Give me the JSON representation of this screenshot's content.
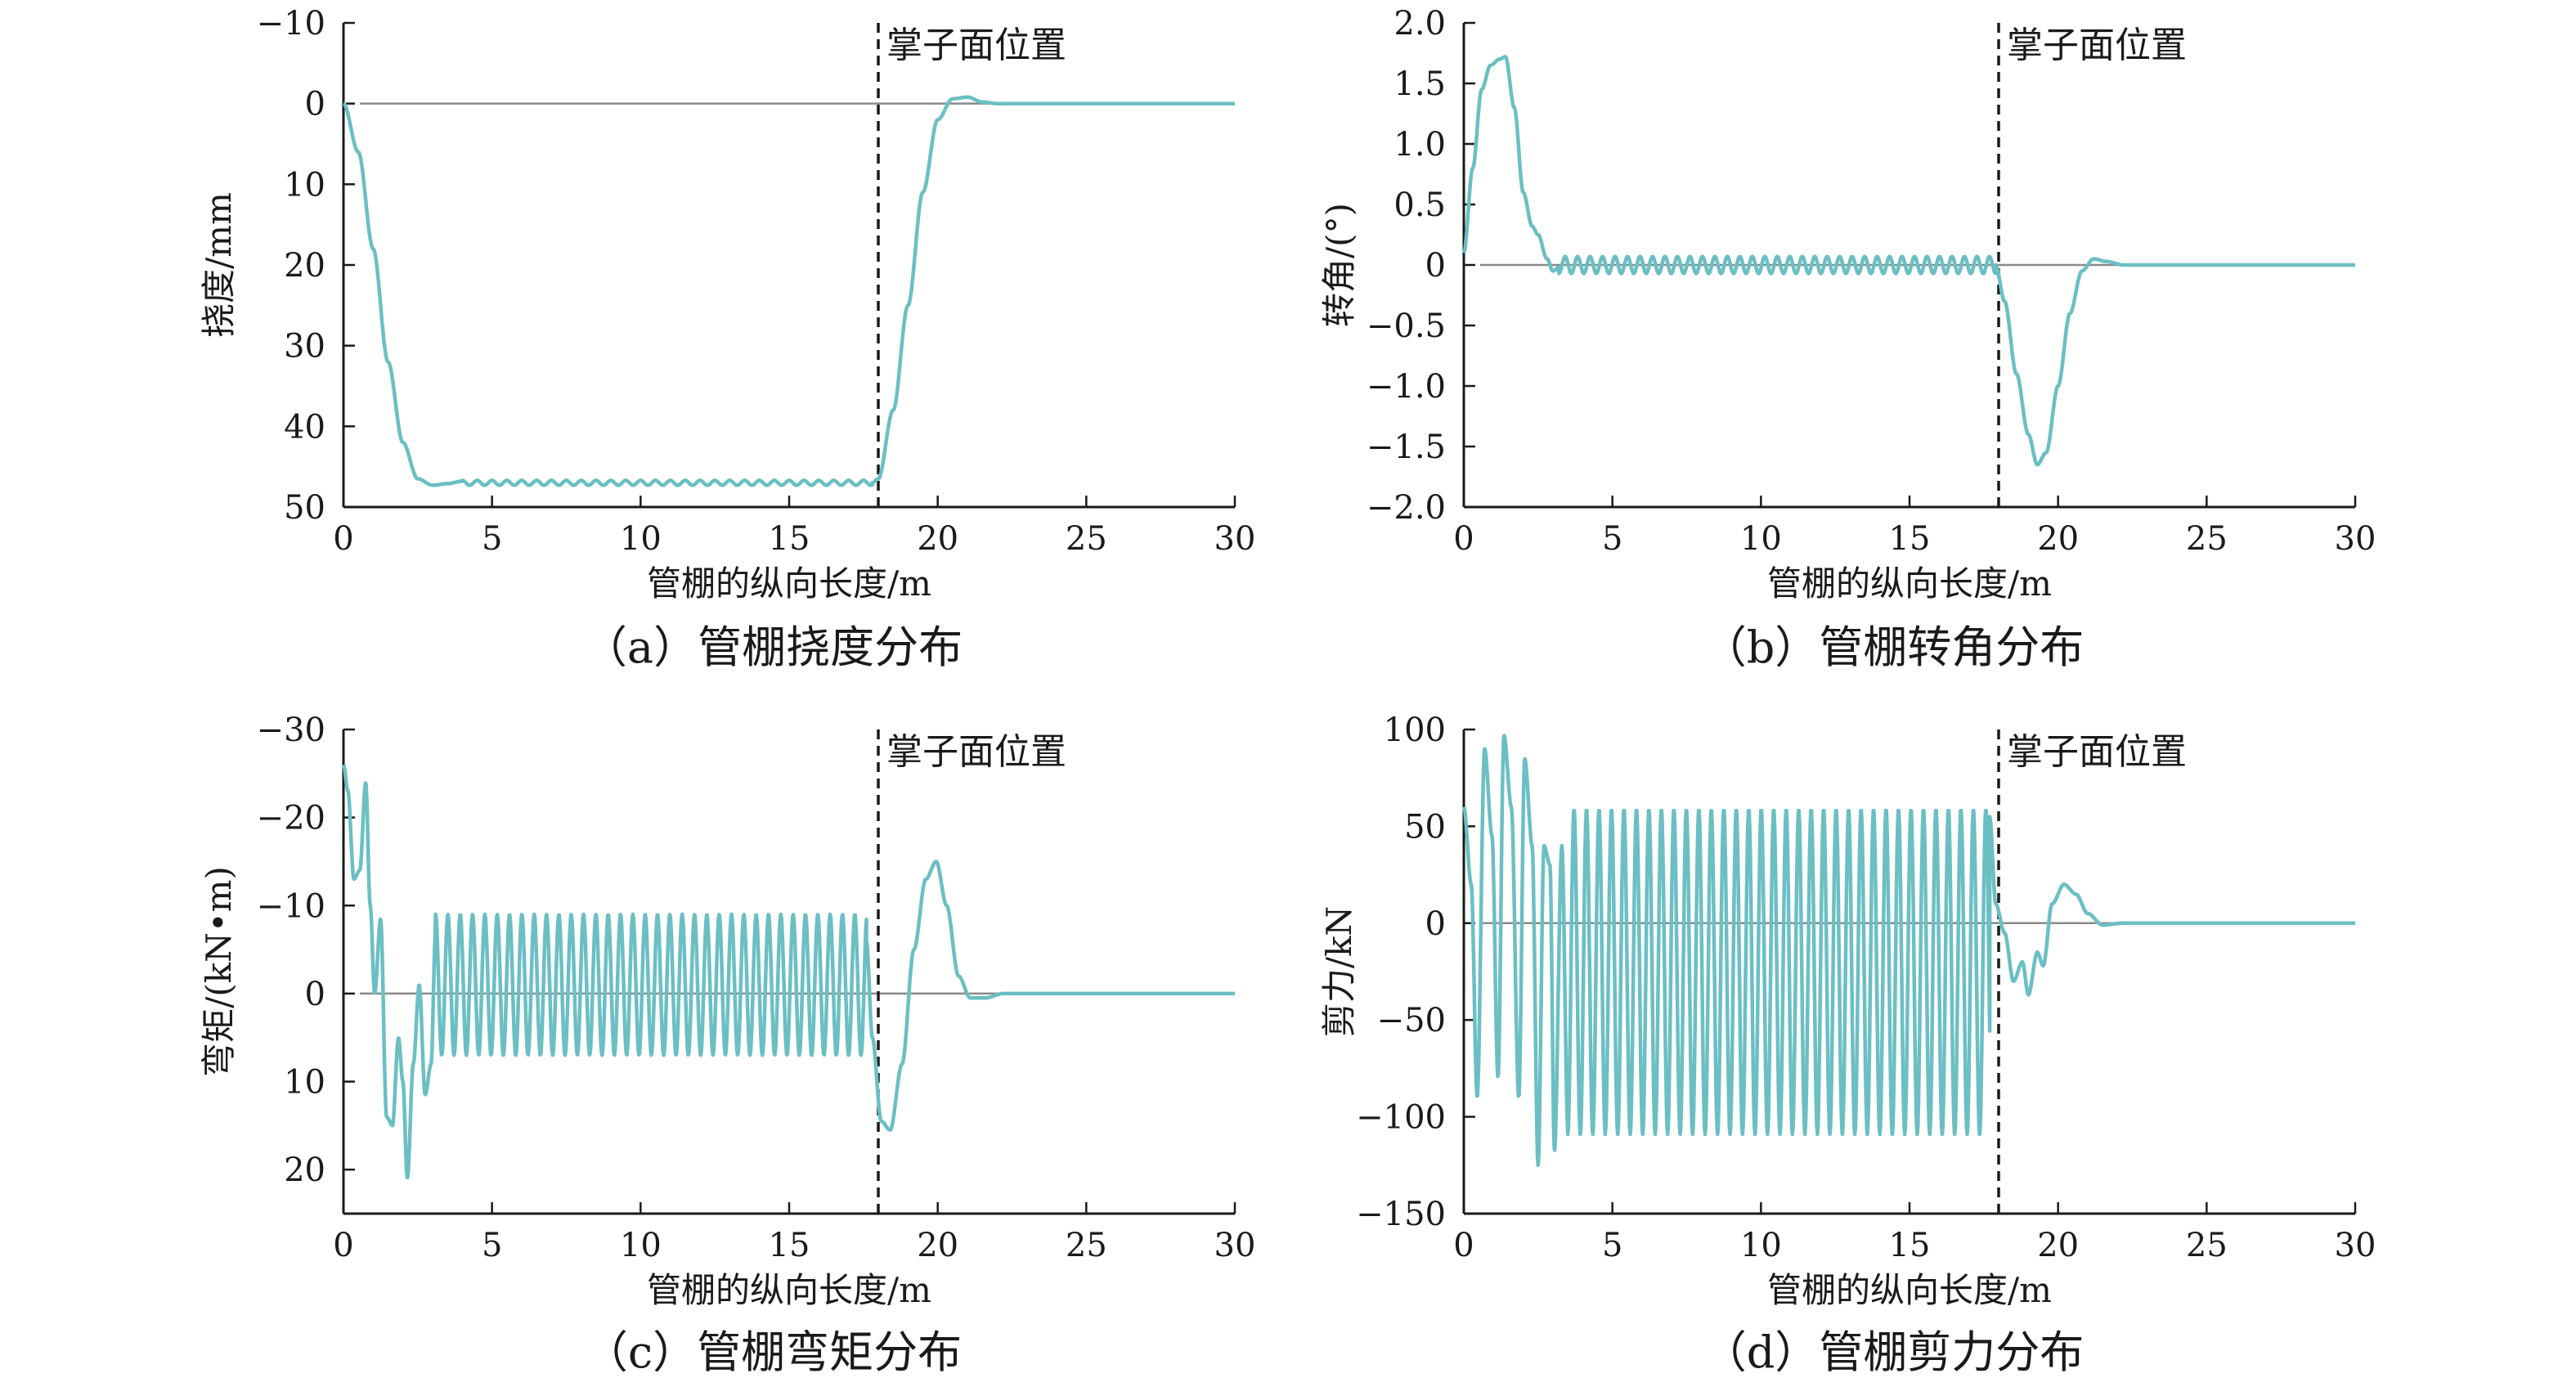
{
  "colors": {
    "series": "#6bbfc3",
    "axis": "#1a1a1a",
    "zero_line": "#8a8a8a",
    "face_line": "#1a1a1a"
  },
  "chart_data": [
    {
      "type": "line",
      "caption": "（a）管棚挠度分布",
      "xlabel": "管棚的纵向长度/m",
      "ylabel": "挠度/mm",
      "xlim": [
        0,
        30
      ],
      "ylim": [
        -10,
        50
      ],
      "y_inverted": true,
      "xticks": [
        "0",
        "5",
        "10",
        "15",
        "20",
        "25",
        "30"
      ],
      "yticks": [
        "−10",
        "0",
        "10",
        "20",
        "30",
        "40",
        "50"
      ],
      "yticks_values": [
        -10,
        0,
        10,
        20,
        30,
        40,
        50
      ],
      "reference_line": {
        "x": 18,
        "label": "掌子面位置"
      },
      "curve": {
        "kind": "piecewise",
        "points": [
          [
            0,
            0
          ],
          [
            0.5,
            6
          ],
          [
            1,
            18
          ],
          [
            1.5,
            32
          ],
          [
            2,
            42
          ],
          [
            2.5,
            46.5
          ],
          [
            3,
            47.3
          ],
          [
            3.5,
            47.1
          ],
          [
            4,
            46.8
          ]
        ],
        "osc": {
          "x0": 4,
          "x1": 17.8,
          "center": 47.0,
          "amp": 0.3,
          "period": 0.5
        },
        "points_after": [
          [
            17.8,
            47
          ],
          [
            18,
            46.5
          ],
          [
            18.5,
            38
          ],
          [
            19,
            25
          ],
          [
            19.5,
            11
          ],
          [
            20,
            2
          ],
          [
            20.5,
            -0.6
          ],
          [
            21,
            -0.8
          ],
          [
            21.5,
            -0.2
          ],
          [
            22,
            0
          ],
          [
            30,
            0
          ]
        ]
      }
    },
    {
      "type": "line",
      "caption": "（b）管棚转角分布",
      "xlabel": "管棚的纵向长度/m",
      "ylabel": "转角/(°)",
      "xlim": [
        0,
        30
      ],
      "ylim": [
        -2.0,
        2.0
      ],
      "y_inverted": false,
      "xticks": [
        "0",
        "5",
        "10",
        "15",
        "20",
        "25",
        "30"
      ],
      "yticks": [
        "2.0",
        "1.5",
        "1.0",
        "0.5",
        "0",
        "−0.5",
        "−1.0",
        "−1.5",
        "−2.0"
      ],
      "yticks_values": [
        2.0,
        1.5,
        1.0,
        0.5,
        0,
        -0.5,
        -1.0,
        -1.5,
        -2.0
      ],
      "reference_line": {
        "x": 18,
        "label": "掌子面位置"
      },
      "curve": {
        "kind": "piecewise",
        "points": [
          [
            0,
            0.1
          ],
          [
            0.3,
            0.8
          ],
          [
            0.6,
            1.45
          ],
          [
            0.9,
            1.65
          ],
          [
            1.2,
            1.7
          ],
          [
            1.4,
            1.72
          ],
          [
            1.7,
            1.3
          ],
          [
            2.0,
            0.6
          ],
          [
            2.3,
            0.32
          ],
          [
            2.5,
            0.25
          ],
          [
            2.8,
            0.05
          ],
          [
            3.0,
            -0.05
          ],
          [
            3.2,
            -0.02
          ]
        ],
        "osc": {
          "x0": 3.2,
          "x1": 17.9,
          "center": 0.0,
          "amp": 0.07,
          "period": 0.42
        },
        "points_after": [
          [
            17.9,
            0
          ],
          [
            18.2,
            -0.3
          ],
          [
            18.6,
            -0.9
          ],
          [
            19.0,
            -1.4
          ],
          [
            19.3,
            -1.65
          ],
          [
            19.6,
            -1.55
          ],
          [
            20.0,
            -1.0
          ],
          [
            20.4,
            -0.4
          ],
          [
            20.8,
            -0.05
          ],
          [
            21.2,
            0.05
          ],
          [
            21.6,
            0.03
          ],
          [
            22.2,
            0
          ],
          [
            30,
            0
          ]
        ]
      }
    },
    {
      "type": "line",
      "caption": "（c）管棚弯矩分布",
      "xlabel": "管棚的纵向长度/m",
      "ylabel": "弯矩/(kN•m)",
      "xlim": [
        0,
        30
      ],
      "ylim": [
        -30,
        25
      ],
      "y_inverted": true,
      "xticks": [
        "0",
        "5",
        "10",
        "15",
        "20",
        "25",
        "30"
      ],
      "yticks": [
        "−30",
        "−20",
        "−10",
        "0",
        "10",
        "20"
      ],
      "yticks_values": [
        -30,
        -20,
        -10,
        0,
        10,
        20
      ],
      "reference_line": {
        "x": 18,
        "label": "掌子面位置"
      },
      "curve": {
        "kind": "piecewise",
        "points": [
          [
            0,
            -26
          ],
          [
            0.15,
            -23
          ],
          [
            0.35,
            -13
          ],
          [
            0.55,
            -14
          ],
          [
            0.75,
            -24
          ],
          [
            0.9,
            -10
          ],
          [
            1.05,
            0
          ],
          [
            1.25,
            -8.5
          ],
          [
            1.45,
            14
          ],
          [
            1.65,
            15
          ],
          [
            1.85,
            5
          ],
          [
            2.0,
            10
          ],
          [
            2.15,
            21
          ],
          [
            2.35,
            8
          ],
          [
            2.55,
            -1
          ],
          [
            2.75,
            11.5
          ],
          [
            2.95,
            8
          ],
          [
            3.1,
            -7
          ]
        ],
        "osc": {
          "x0": 3.1,
          "x1": 17.6,
          "center": -1,
          "amp": 8,
          "period": 0.415
        },
        "points_after": [
          [
            17.6,
            -6
          ],
          [
            17.8,
            5
          ],
          [
            18.1,
            14.5
          ],
          [
            18.4,
            15.5
          ],
          [
            18.8,
            8
          ],
          [
            19.2,
            -5
          ],
          [
            19.6,
            -13
          ],
          [
            19.95,
            -15
          ],
          [
            20.3,
            -10
          ],
          [
            20.7,
            -2
          ],
          [
            21.1,
            0.5
          ],
          [
            21.6,
            0.5
          ],
          [
            22.2,
            0
          ],
          [
            30,
            0
          ]
        ]
      }
    },
    {
      "type": "line",
      "caption": "（d）管棚剪力分布",
      "xlabel": "管棚的纵向长度/m",
      "ylabel": "剪力/kN",
      "xlim": [
        0,
        30
      ],
      "ylim": [
        -150,
        100
      ],
      "y_inverted": false,
      "xticks": [
        "0",
        "5",
        "10",
        "15",
        "20",
        "25",
        "30"
      ],
      "yticks": [
        "100",
        "50",
        "0",
        "−50",
        "−100",
        "−150"
      ],
      "yticks_values": [
        100,
        50,
        0,
        -50,
        -100,
        -150
      ],
      "reference_line": {
        "x": 18,
        "label": "掌子面位置"
      },
      "curve": {
        "kind": "piecewise",
        "points": [
          [
            0,
            60
          ],
          [
            0.25,
            20
          ],
          [
            0.45,
            -90
          ],
          [
            0.7,
            90
          ],
          [
            0.95,
            45
          ],
          [
            1.15,
            -80
          ],
          [
            1.35,
            97
          ],
          [
            1.6,
            60
          ],
          [
            1.85,
            -90
          ],
          [
            2.05,
            85
          ],
          [
            2.3,
            40
          ],
          [
            2.5,
            -125
          ],
          [
            2.7,
            40
          ],
          [
            2.9,
            30
          ],
          [
            3.05,
            -118
          ],
          [
            3.3,
            40
          ],
          [
            3.5,
            -105
          ]
        ],
        "osc": {
          "x0": 3.5,
          "x1": 17.7,
          "center": -25,
          "amp": 84,
          "period": 0.42
        },
        "points_after": [
          [
            17.7,
            55
          ],
          [
            17.9,
            10
          ],
          [
            18.2,
            -5
          ],
          [
            18.5,
            -30
          ],
          [
            18.8,
            -20
          ],
          [
            19.0,
            -37
          ],
          [
            19.3,
            -15
          ],
          [
            19.5,
            -22
          ],
          [
            19.8,
            10
          ],
          [
            20.2,
            20
          ],
          [
            20.6,
            15
          ],
          [
            21.0,
            5
          ],
          [
            21.5,
            -1
          ],
          [
            22.2,
            0
          ],
          [
            30,
            0
          ]
        ]
      }
    }
  ]
}
